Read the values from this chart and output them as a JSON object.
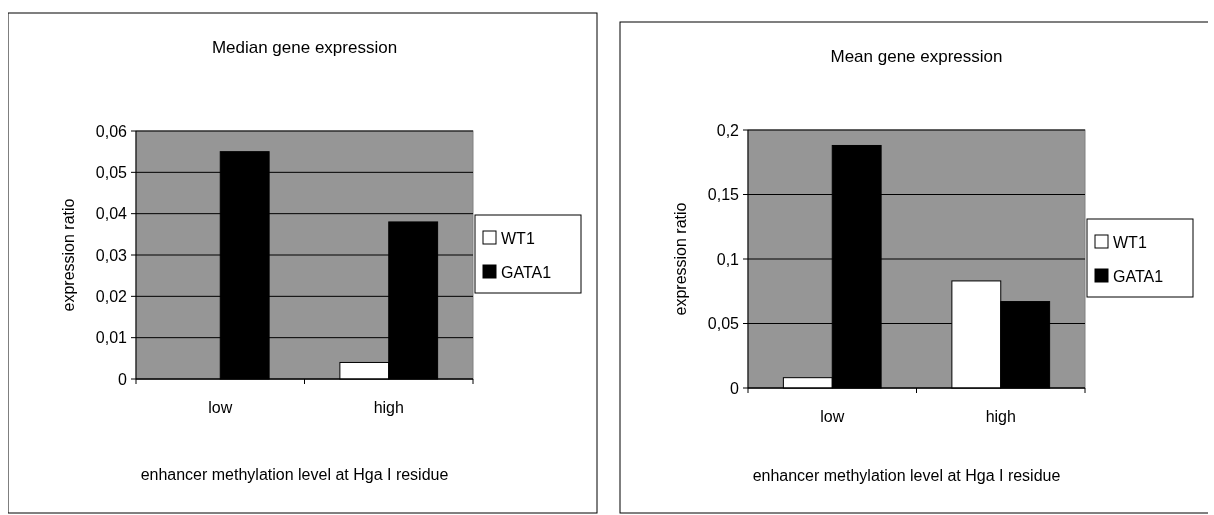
{
  "chart_data": [
    {
      "type": "bar",
      "title": "Median gene expression",
      "xlabel": "enhancer methylation level at Hga I residue",
      "ylabel": "expression ratio",
      "categories": [
        "low",
        "high"
      ],
      "series": [
        {
          "name": "WT1",
          "color": "#ffffff",
          "values": [
            0,
            0.004
          ]
        },
        {
          "name": "GATA1",
          "color": "#000000",
          "values": [
            0.055,
            0.038
          ]
        }
      ],
      "ylim": [
        0,
        0.06
      ],
      "yticks": [
        0,
        {
          "value": 0.01,
          "label": "0,01"
        },
        {
          "value": 0.02,
          "label": "0,02"
        },
        {
          "value": 0.03,
          "label": "0,03"
        },
        {
          "value": 0.04,
          "label": "0,04"
        },
        {
          "value": 0.05,
          "label": "0,05"
        },
        {
          "value": 0.06,
          "label": "0,06"
        }
      ],
      "grid": "y",
      "legend": "right"
    },
    {
      "type": "bar",
      "title": "Mean gene expression",
      "xlabel": "enhancer methylation level at Hga I residue",
      "ylabel": "expression ratio",
      "categories": [
        "low",
        "high"
      ],
      "series": [
        {
          "name": "WT1",
          "color": "#ffffff",
          "values": [
            0.008,
            0.083
          ]
        },
        {
          "name": "GATA1",
          "color": "#000000",
          "values": [
            0.188,
            0.067
          ]
        }
      ],
      "ylim": [
        0,
        0.2
      ],
      "yticks": [
        0,
        {
          "value": 0.05,
          "label": "0,05"
        },
        {
          "value": 0.1,
          "label": "0,1"
        },
        {
          "value": 0.15,
          "label": "0,15"
        },
        {
          "value": 0.2,
          "label": "0,2"
        }
      ],
      "grid": "y",
      "legend": "right"
    }
  ]
}
